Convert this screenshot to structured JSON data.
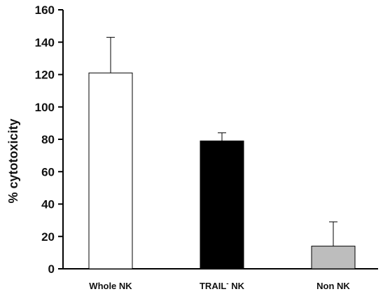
{
  "chart_data": {
    "type": "bar",
    "categories": [
      "Whole NK",
      "TRAIL- NK",
      "Non NK"
    ],
    "category_labels": [
      {
        "main": "Whole NK",
        "sup": ""
      },
      {
        "main": "TRAIL",
        "sup": "-",
        "suffix": " NK"
      },
      {
        "main": "Non NK",
        "sup": ""
      }
    ],
    "values": [
      121,
      79,
      14
    ],
    "error_plus": [
      22,
      5,
      15
    ],
    "ylabel": "% cytotoxicity",
    "ylim": [
      0,
      160
    ],
    "yticks": [
      0,
      20,
      40,
      60,
      80,
      100,
      120,
      140,
      160
    ],
    "ytick_labels": [
      "0",
      "20",
      "40",
      "60",
      "80",
      "100",
      "120",
      "140",
      "160"
    ],
    "grid": false,
    "bar_colors": [
      "#ffffff",
      "#000000",
      "#bdbdbd"
    ]
  }
}
